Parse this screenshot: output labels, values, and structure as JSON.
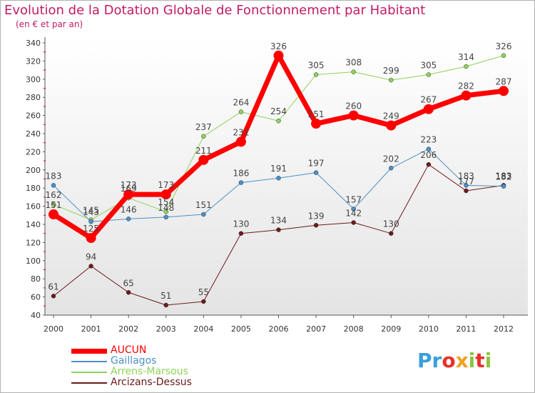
{
  "header": {
    "title": "Evolution de la Dotation Globale de Fonctionnement par Habitant",
    "subtitle": "(en € et par an)"
  },
  "logo": {
    "letters": [
      "P",
      "r",
      "o",
      "x",
      "i",
      "t",
      "i"
    ],
    "colors": [
      "#3aa0d8",
      "#3aa0d8",
      "#e8312a",
      "#f0a020",
      "#8bc53f",
      "#e8312a",
      "#8bc53f"
    ]
  },
  "chart_data": {
    "type": "line",
    "title": "Evolution de la Dotation Globale de Fonctionnement par Habitant",
    "subtitle": "(en € et par an)",
    "x": [
      "2000",
      "2001",
      "2002",
      "2003",
      "2004",
      "2005",
      "2006",
      "2007",
      "2008",
      "2009",
      "2010",
      "2011",
      "2012"
    ],
    "ylim": [
      40,
      340
    ],
    "yticks": [
      40,
      60,
      80,
      100,
      120,
      140,
      160,
      180,
      200,
      220,
      240,
      260,
      280,
      300,
      320,
      340
    ],
    "grid": false,
    "legend_position": "bottom-left",
    "series": [
      {
        "name": "AUCUN",
        "color": "#ff0000",
        "values": [
          151,
          125,
          173,
          173,
          211,
          231,
          326,
          251,
          260,
          249,
          267,
          282,
          287
        ]
      },
      {
        "name": "Gaillagos",
        "color": "#4a90c8",
        "values": [
          183,
          143,
          146,
          148,
          151,
          186,
          191,
          197,
          157,
          202,
          223,
          183,
          182
        ]
      },
      {
        "name": "Arrens-Marsous",
        "color": "#8fd35a",
        "values": [
          162,
          145,
          169,
          154,
          237,
          264,
          254,
          305,
          308,
          299,
          305,
          314,
          326
        ]
      },
      {
        "name": "Arcizans-Dessus",
        "color": "#6b1a1a",
        "values": [
          61,
          94,
          65,
          51,
          55,
          130,
          134,
          139,
          142,
          130,
          206,
          177,
          183
        ]
      }
    ],
    "data_labels": [
      [
        "151",
        "125",
        "173",
        "173",
        "211",
        "231",
        "326",
        "251",
        "260",
        "249",
        "267",
        "282",
        "287"
      ],
      [
        "183",
        "143",
        "146",
        "148",
        "151",
        "186",
        "191",
        "197",
        "157",
        "202",
        "223",
        "183",
        "182"
      ],
      [
        "162",
        "145",
        "169",
        "154",
        "237",
        "264",
        "254",
        "305",
        "308",
        "299",
        "305",
        "314",
        "326"
      ],
      [
        "61",
        "94",
        "65",
        "51",
        "55",
        "130",
        "134",
        "139",
        "142",
        "130",
        "206",
        "177",
        "183"
      ]
    ]
  }
}
